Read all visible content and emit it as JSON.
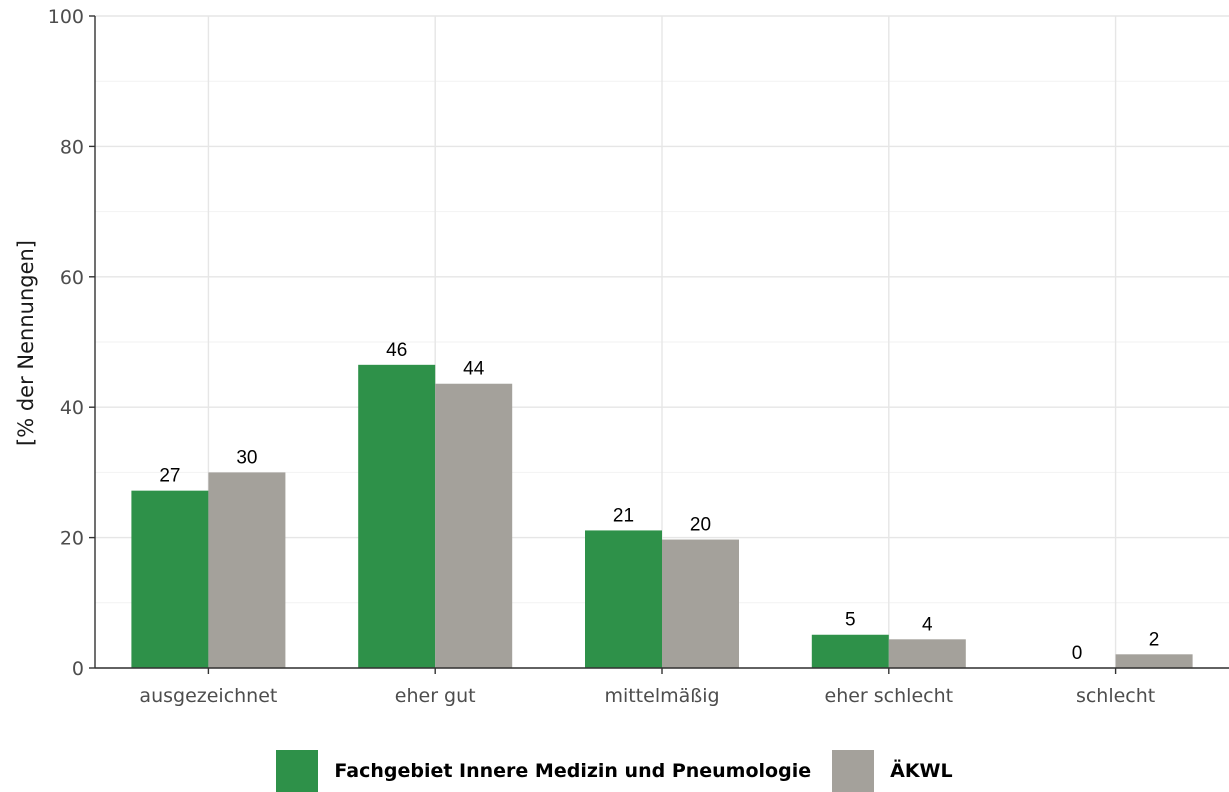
{
  "chart_data": {
    "type": "bar",
    "categories": [
      "ausgezeichnet",
      "eher gut",
      "mittelmäßig",
      "eher schlecht",
      "schlecht"
    ],
    "series": [
      {
        "name": "Fachgebiet Innere Medizin und Pneumologie",
        "color": "#2e9149",
        "values": [
          27.2,
          46.5,
          21.1,
          5.1,
          0
        ],
        "labels": [
          "27",
          "46",
          "21",
          "5",
          "0"
        ]
      },
      {
        "name": "ÄKWL",
        "color": "#a4a19b",
        "values": [
          30.0,
          43.6,
          19.7,
          4.4,
          2.1
        ],
        "labels": [
          "30",
          "44",
          "20",
          "4",
          "2"
        ]
      }
    ],
    "ylabel": "[% der Nennungen]",
    "xlabel": "",
    "ylim": [
      0,
      100
    ],
    "yticks": [
      0,
      20,
      40,
      60,
      80,
      100
    ],
    "ytick_labels": [
      "0",
      "20",
      "40",
      "60",
      "80",
      "100"
    ],
    "grid": true,
    "legend_position": "bottom"
  }
}
